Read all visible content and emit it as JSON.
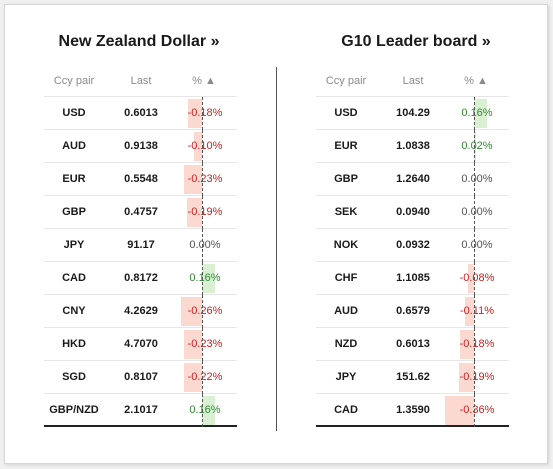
{
  "colors": {
    "neg_text": "#cc1f1f",
    "pos_text": "#2e8b2e",
    "neg_bar": "#fbd9d0",
    "pos_bar": "#d9f0d3"
  },
  "panels": [
    {
      "title": "New Zealand Dollar »",
      "headers": {
        "pair": "Ccy pair",
        "last": "Last",
        "pct": "% ▲"
      },
      "rows": [
        {
          "pair": "USD",
          "last": "0.6013",
          "pct": "-0.18%",
          "value": -0.18
        },
        {
          "pair": "AUD",
          "last": "0.9138",
          "pct": "-0.10%",
          "value": -0.1
        },
        {
          "pair": "EUR",
          "last": "0.5548",
          "pct": "-0.23%",
          "value": -0.23
        },
        {
          "pair": "GBP",
          "last": "0.4757",
          "pct": "-0.19%",
          "value": -0.19
        },
        {
          "pair": "JPY",
          "last": "91.17",
          "pct": "0.00%",
          "value": 0.0
        },
        {
          "pair": "CAD",
          "last": "0.8172",
          "pct": "0.16%",
          "value": 0.16
        },
        {
          "pair": "CNY",
          "last": "4.2629",
          "pct": "-0.26%",
          "value": -0.26
        },
        {
          "pair": "HKD",
          "last": "4.7070",
          "pct": "-0.23%",
          "value": -0.23
        },
        {
          "pair": "SGD",
          "last": "0.8107",
          "pct": "-0.22%",
          "value": -0.22
        },
        {
          "pair": "GBP/NZD",
          "last": "2.1017",
          "pct": "0.16%",
          "value": 0.16
        }
      ]
    },
    {
      "title": "G10 Leader board »",
      "headers": {
        "pair": "Ccy pair",
        "last": "Last",
        "pct": "% ▲"
      },
      "rows": [
        {
          "pair": "USD",
          "last": "104.29",
          "pct": "0.16%",
          "value": 0.16
        },
        {
          "pair": "EUR",
          "last": "1.0838",
          "pct": "0.02%",
          "value": 0.02
        },
        {
          "pair": "GBP",
          "last": "1.2640",
          "pct": "0.00%",
          "value": 0.0
        },
        {
          "pair": "SEK",
          "last": "0.0940",
          "pct": "0.00%",
          "value": 0.0
        },
        {
          "pair": "NOK",
          "last": "0.0932",
          "pct": "0.00%",
          "value": 0.0
        },
        {
          "pair": "CHF",
          "last": "1.1085",
          "pct": "-0.08%",
          "value": -0.08
        },
        {
          "pair": "AUD",
          "last": "0.6579",
          "pct": "-0.11%",
          "value": -0.11
        },
        {
          "pair": "NZD",
          "last": "0.6013",
          "pct": "-0.18%",
          "value": -0.18
        },
        {
          "pair": "JPY",
          "last": "151.62",
          "pct": "-0.19%",
          "value": -0.19
        },
        {
          "pair": "CAD",
          "last": "1.3590",
          "pct": "-0.36%",
          "value": -0.36
        }
      ]
    }
  ]
}
